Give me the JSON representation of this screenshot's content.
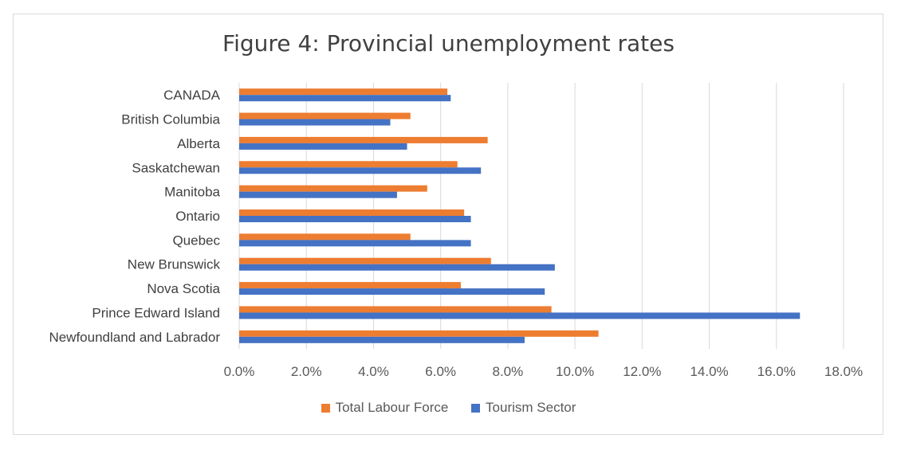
{
  "chart_data": {
    "type": "bar",
    "orientation": "horizontal",
    "title": "Figure 4: Provincial unemployment rates",
    "categories": [
      "CANADA",
      "British Columbia",
      "Alberta",
      "Saskatchewan",
      "Manitoba",
      "Ontario",
      "Quebec",
      "New Brunswick",
      "Nova Scotia",
      "Prince Edward Island",
      "Newfoundland and Labrador"
    ],
    "series": [
      {
        "name": "Total Labour Force",
        "color": "#ED7D31",
        "values": [
          6.2,
          5.1,
          7.4,
          6.5,
          5.6,
          6.7,
          5.1,
          7.5,
          6.6,
          9.3,
          10.7
        ]
      },
      {
        "name": "Tourism Sector",
        "color": "#4472C4",
        "values": [
          6.3,
          4.5,
          5.0,
          7.2,
          4.7,
          6.9,
          6.9,
          9.4,
          9.1,
          16.7,
          8.5
        ]
      }
    ],
    "x_ticks": [
      "0.0%",
      "2.0%",
      "4.0%",
      "6.0%",
      "8.0%",
      "10.0%",
      "12.0%",
      "14.0%",
      "16.0%",
      "18.0%"
    ],
    "xlim": [
      0,
      18
    ],
    "xlabel": "",
    "ylabel": "",
    "grid": true,
    "legend_position": "bottom"
  }
}
